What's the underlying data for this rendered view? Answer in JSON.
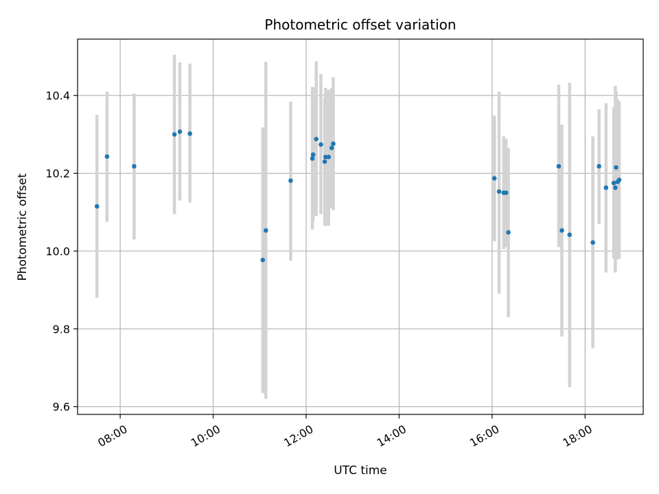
{
  "chart_data": {
    "type": "scatter",
    "title": "Photometric offset variation",
    "xlabel": "UTC time",
    "ylabel": "Photometric offset",
    "x_tick_labels": [
      "08:00",
      "10:00",
      "12:00",
      "14:00",
      "16:00",
      "18:00"
    ],
    "y_tick_labels": [
      "9.6",
      "9.8",
      "10.0",
      "10.2",
      "10.4"
    ],
    "xlim": [
      "07:05",
      "19:15"
    ],
    "ylim": [
      9.58,
      10.545
    ],
    "grid": true,
    "colors": {
      "point": "#1f77b4",
      "errorbar": "#d3d3d3",
      "grid": "#b0b0b0"
    },
    "series": [
      {
        "points": [
          {
            "x": "07:30",
            "y": 10.115,
            "yerr_low": 9.88,
            "yerr_high": 10.35
          },
          {
            "x": "07:43",
            "y": 10.243,
            "yerr_low": 10.075,
            "yerr_high": 10.41
          },
          {
            "x": "08:18",
            "y": 10.218,
            "yerr_low": 10.03,
            "yerr_high": 10.405
          },
          {
            "x": "09:10",
            "y": 10.3,
            "yerr_low": 10.095,
            "yerr_high": 10.505
          },
          {
            "x": "09:17",
            "y": 10.307,
            "yerr_low": 10.13,
            "yerr_high": 10.485
          },
          {
            "x": "09:30",
            "y": 10.302,
            "yerr_low": 10.125,
            "yerr_high": 10.482
          },
          {
            "x": "11:04",
            "y": 9.977,
            "yerr_low": 9.635,
            "yerr_high": 10.318
          },
          {
            "x": "11:08",
            "y": 10.053,
            "yerr_low": 9.62,
            "yerr_high": 10.487
          },
          {
            "x": "11:40",
            "y": 10.181,
            "yerr_low": 9.975,
            "yerr_high": 10.385
          },
          {
            "x": "12:08",
            "y": 10.238,
            "yerr_low": 10.055,
            "yerr_high": 10.422
          },
          {
            "x": "12:09",
            "y": 10.248,
            "yerr_low": 10.075,
            "yerr_high": 10.42
          },
          {
            "x": "12:13",
            "y": 10.288,
            "yerr_low": 10.09,
            "yerr_high": 10.488
          },
          {
            "x": "12:19",
            "y": 10.274,
            "yerr_low": 10.095,
            "yerr_high": 10.455
          },
          {
            "x": "12:24",
            "y": 10.23,
            "yerr_low": 10.065,
            "yerr_high": 10.395
          },
          {
            "x": "12:25",
            "y": 10.242,
            "yerr_low": 10.065,
            "yerr_high": 10.42
          },
          {
            "x": "12:29",
            "y": 10.242,
            "yerr_low": 10.065,
            "yerr_high": 10.415
          },
          {
            "x": "12:33",
            "y": 10.265,
            "yerr_low": 10.11,
            "yerr_high": 10.42
          },
          {
            "x": "12:35",
            "y": 10.276,
            "yerr_low": 10.105,
            "yerr_high": 10.447
          },
          {
            "x": "16:03",
            "y": 10.187,
            "yerr_low": 10.025,
            "yerr_high": 10.348
          },
          {
            "x": "16:09",
            "y": 10.153,
            "yerr_low": 9.89,
            "yerr_high": 10.41
          },
          {
            "x": "16:15",
            "y": 10.15,
            "yerr_low": 10.005,
            "yerr_high": 10.295
          },
          {
            "x": "16:18",
            "y": 10.15,
            "yerr_low": 10.01,
            "yerr_high": 10.288
          },
          {
            "x": "16:21",
            "y": 10.048,
            "yerr_low": 9.83,
            "yerr_high": 10.265
          },
          {
            "x": "17:26",
            "y": 10.218,
            "yerr_low": 10.01,
            "yerr_high": 10.428
          },
          {
            "x": "17:30",
            "y": 10.053,
            "yerr_low": 9.78,
            "yerr_high": 10.325
          },
          {
            "x": "17:40",
            "y": 10.042,
            "yerr_low": 9.65,
            "yerr_high": 10.433
          },
          {
            "x": "18:10",
            "y": 10.022,
            "yerr_low": 9.75,
            "yerr_high": 10.295
          },
          {
            "x": "18:18",
            "y": 10.218,
            "yerr_low": 10.07,
            "yerr_high": 10.365
          },
          {
            "x": "18:27",
            "y": 10.163,
            "yerr_low": 9.945,
            "yerr_high": 10.38
          },
          {
            "x": "18:37",
            "y": 10.175,
            "yerr_low": 9.98,
            "yerr_high": 10.37
          },
          {
            "x": "18:39",
            "y": 10.163,
            "yerr_low": 9.945,
            "yerr_high": 10.425
          },
          {
            "x": "18:40",
            "y": 10.215,
            "yerr_low": 9.99,
            "yerr_high": 10.41
          },
          {
            "x": "18:42",
            "y": 10.178,
            "yerr_low": 9.978,
            "yerr_high": 10.39
          },
          {
            "x": "18:44",
            "y": 10.183,
            "yerr_low": 9.98,
            "yerr_high": 10.385
          }
        ]
      }
    ]
  }
}
